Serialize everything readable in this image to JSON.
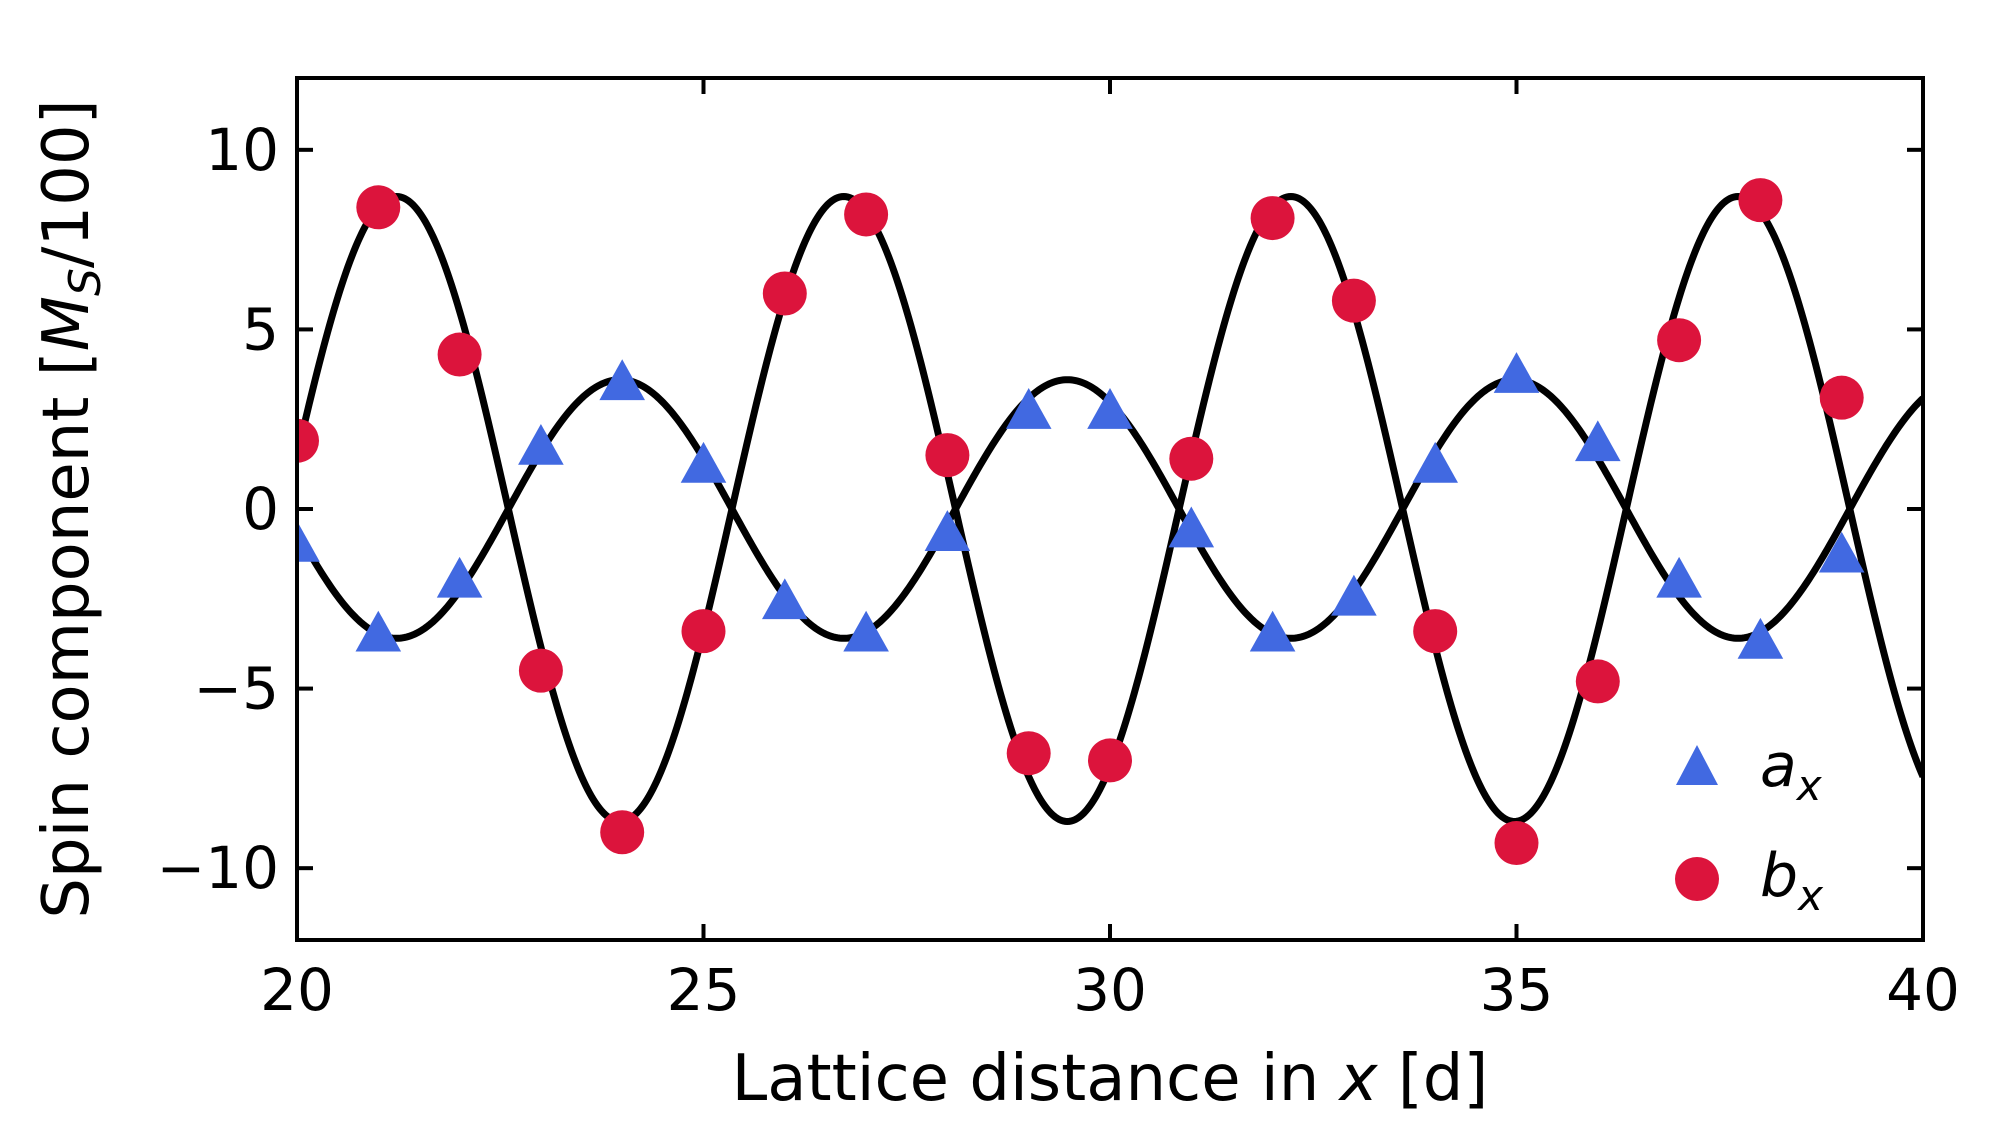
{
  "chart_data": {
    "type": "scatter",
    "xlabel": {
      "pre": "Lattice distance in ",
      "var": "x",
      "post": " [d]"
    },
    "ylabel": {
      "pre": "Spin component [",
      "var": "M",
      "sub": "S",
      "post": "/100]"
    },
    "xlim": [
      20,
      40
    ],
    "ylim": [
      -12,
      12
    ],
    "xticks": [
      20,
      25,
      30,
      35,
      40
    ],
    "yticks": [
      -10,
      -5,
      0,
      5,
      10
    ],
    "xtick_labels": [
      "20",
      "25",
      "30",
      "35",
      "40"
    ],
    "ytick_labels": [
      "−10",
      "−5",
      "0",
      "5",
      "10"
    ],
    "grid": false,
    "legend_position": "lower-right",
    "fit_curves": [
      {
        "amplitude": 3.6,
        "period": 5.5,
        "x_zero_rising": 22.6
      },
      {
        "amplitude": 8.7,
        "period": 5.5,
        "x_zero_rising": 19.85
      }
    ],
    "series": [
      {
        "name": "a",
        "subscript": "x",
        "marker": "triangle",
        "color": "#4169e1",
        "x": [
          20,
          21,
          22,
          23,
          24,
          25,
          26,
          27,
          28,
          29,
          30,
          31,
          32,
          33,
          34,
          35,
          36,
          37,
          38,
          39
        ],
        "y": [
          -1.0,
          -3.5,
          -2.0,
          1.7,
          3.5,
          1.2,
          -2.6,
          -3.5,
          -0.7,
          2.7,
          2.7,
          -0.6,
          -3.5,
          -2.5,
          1.2,
          3.7,
          1.8,
          -2.0,
          -3.7,
          -1.3
        ]
      },
      {
        "name": "b",
        "subscript": "x",
        "marker": "circle",
        "color": "#dc143c",
        "x": [
          20,
          21,
          22,
          23,
          24,
          25,
          26,
          27,
          28,
          29,
          30,
          31,
          32,
          33,
          34,
          35,
          36,
          37,
          38,
          39
        ],
        "y": [
          1.9,
          8.4,
          4.3,
          -4.5,
          -9.0,
          -3.4,
          6.0,
          8.2,
          1.5,
          -6.8,
          -7.0,
          1.4,
          8.1,
          5.8,
          -3.4,
          -9.3,
          -4.8,
          4.7,
          8.6,
          3.1
        ]
      }
    ]
  }
}
